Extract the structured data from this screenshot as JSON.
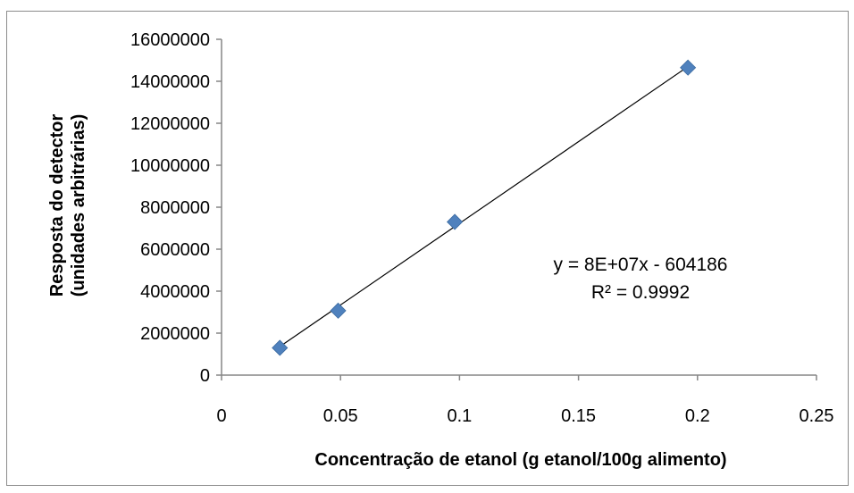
{
  "chart_data": {
    "type": "scatter",
    "xlabel": "Concentração de etanol (g etanol/100g alimento)",
    "ylabel_lines": [
      "Resposta do detector",
      "(unidades arbitrárias)"
    ],
    "xlim": [
      0,
      0.25
    ],
    "ylim": [
      0,
      16000000
    ],
    "x_ticks": [
      "0",
      "0.05",
      "0.1",
      "0.15",
      "0.2",
      "0.25"
    ],
    "y_ticks": [
      "0",
      "2000000",
      "4000000",
      "6000000",
      "8000000",
      "10000000",
      "12000000",
      "14000000",
      "16000000"
    ],
    "series": [
      {
        "x": [
          0.0245,
          0.049,
          0.098,
          0.196
        ],
        "y": [
          1300000,
          3070000,
          7300000,
          14650000
        ],
        "marker": "diamond",
        "color": "#4f81bd"
      }
    ],
    "trendline": {
      "type": "linear",
      "x_range": [
        0.0245,
        0.196
      ],
      "y_range": [
        1360000,
        14700000
      ],
      "color": "#000000",
      "equation": "y = 8E+07x - 604186",
      "r_squared": "R² = 0.9992"
    },
    "grid": false,
    "legend": "none"
  }
}
